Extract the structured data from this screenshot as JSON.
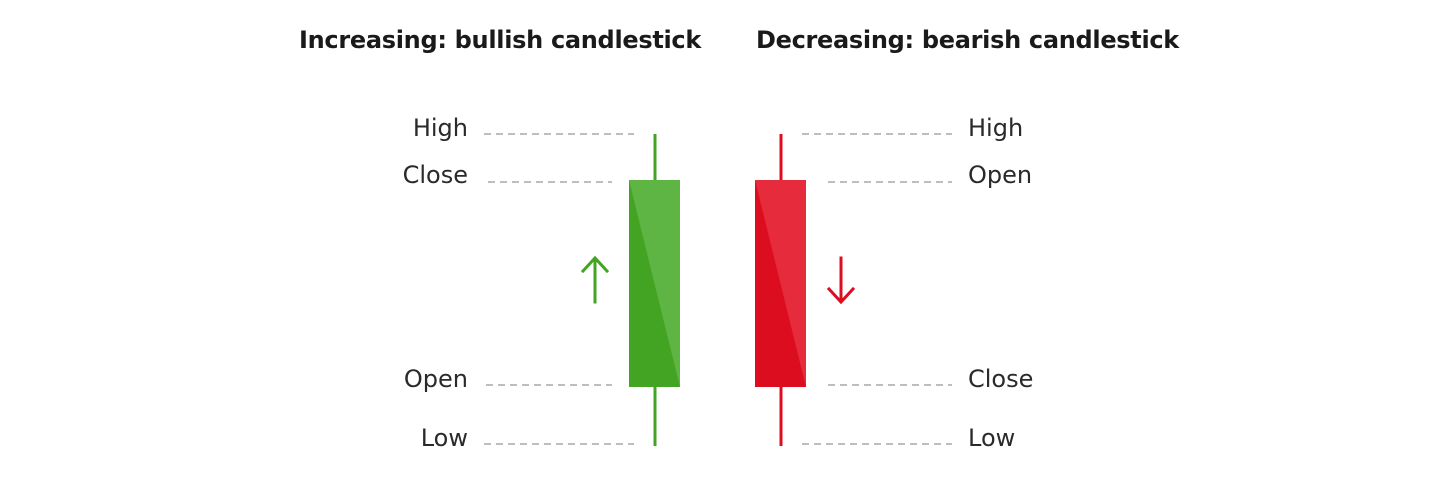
{
  "headings": {
    "bullish": "Increasing: bullish candlestick",
    "bearish": "Decreasing: bearish candlestick"
  },
  "bullish": {
    "labels": {
      "high": "High",
      "close": "Close",
      "open": "Open",
      "low": "Low"
    },
    "arrow": "up-arrow-icon",
    "color": "#43a323",
    "color_light": "#5fb544"
  },
  "bearish": {
    "labels": {
      "high": "High",
      "open": "Open",
      "close": "Close",
      "low": "Low"
    },
    "arrow": "down-arrow-icon",
    "color": "#dc0d1e",
    "color_light": "#e62b3c"
  },
  "colors": {
    "dash": "#a8a8a8",
    "text": "#2a2a2a"
  }
}
